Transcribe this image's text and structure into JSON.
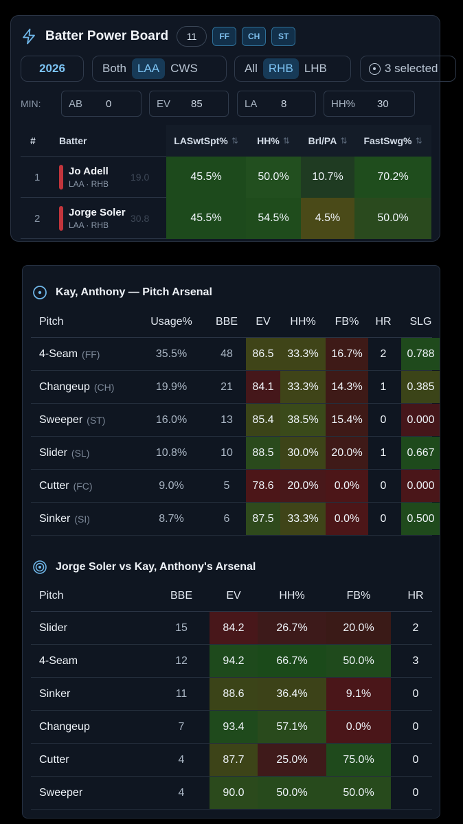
{
  "board": {
    "title": "Batter Power Board",
    "count": "11",
    "pitch_chips": [
      "FF",
      "CH",
      "ST"
    ],
    "icon": "lightning-bolt-icon"
  },
  "filters": {
    "year": "2026",
    "teams": [
      "Both",
      "LAA",
      "CWS"
    ],
    "team_active": "LAA",
    "hands": [
      "All",
      "RHB",
      "LHB"
    ],
    "hand_active": "RHB",
    "selection": "3 selected"
  },
  "minimums": {
    "label": "MIN:",
    "fields": [
      {
        "label": "AB",
        "value": "0"
      },
      {
        "label": "EV",
        "value": "85"
      },
      {
        "label": "LA",
        "value": "8"
      },
      {
        "label": "HH%",
        "value": "30"
      }
    ]
  },
  "batter_table": {
    "headers": [
      "#",
      "Batter",
      "LASwtSpt%",
      "HH%",
      "Brl/PA",
      "FastSwg%"
    ],
    "sort_icon": "⇅",
    "rows": [
      {
        "rank": "1",
        "name": "Jo Adell",
        "meta": "LAA · RHB",
        "ghost": "19.0",
        "cells": [
          "45.5%",
          "50.0%",
          "10.7%",
          "70.2%"
        ]
      },
      {
        "rank": "2",
        "name": "Jorge Soler",
        "meta": "LAA · RHB",
        "ghost": "30.8",
        "cells": [
          "45.5%",
          "54.5%",
          "4.5%",
          "50.0%"
        ]
      }
    ],
    "colors": [
      [
        "#1d4a1c",
        "#224f1f",
        "#1f3b22",
        "#1f4d1d"
      ],
      [
        "#1d4a1c",
        "#1f4c1c",
        "#4a4a18",
        "#2a4a1e"
      ]
    ]
  },
  "arsenal": {
    "title": "Kay, Anthony — Pitch Arsenal",
    "icon": "target-icon",
    "headers": [
      "Pitch",
      "Usage%",
      "BBE",
      "EV",
      "HH%",
      "FB%",
      "HR",
      "SLG"
    ],
    "rows": [
      {
        "pitch": "4-Seam",
        "abbr": "(FF)",
        "usage": "35.5%",
        "bbe": "48",
        "ev": "86.5",
        "hh": "33.3%",
        "fb": "16.7%",
        "hr": "2",
        "slg": "0.788"
      },
      {
        "pitch": "Changeup",
        "abbr": "(CH)",
        "usage": "19.9%",
        "bbe": "21",
        "ev": "84.1",
        "hh": "33.3%",
        "fb": "14.3%",
        "hr": "1",
        "slg": "0.385"
      },
      {
        "pitch": "Sweeper",
        "abbr": "(ST)",
        "usage": "16.0%",
        "bbe": "13",
        "ev": "85.4",
        "hh": "38.5%",
        "fb": "15.4%",
        "hr": "0",
        "slg": "0.000"
      },
      {
        "pitch": "Slider",
        "abbr": "(SL)",
        "usage": "10.8%",
        "bbe": "10",
        "ev": "88.5",
        "hh": "30.0%",
        "fb": "20.0%",
        "hr": "1",
        "slg": "0.667"
      },
      {
        "pitch": "Cutter",
        "abbr": "(FC)",
        "usage": "9.0%",
        "bbe": "5",
        "ev": "78.6",
        "hh": "20.0%",
        "fb": "0.0%",
        "hr": "0",
        "slg": "0.000"
      },
      {
        "pitch": "Sinker",
        "abbr": "(SI)",
        "usage": "8.7%",
        "bbe": "6",
        "ev": "87.5",
        "hh": "33.3%",
        "fb": "0.0%",
        "hr": "0",
        "slg": "0.500"
      }
    ],
    "colors": [
      {
        "ev": "#3f4418",
        "hh": "#3f4418",
        "fb": "#3e1a17",
        "slg": "#1f4a1c"
      },
      {
        "ev": "#45171a",
        "hh": "#3f4418",
        "fb": "#3e1a17",
        "slg": "#3b4418"
      },
      {
        "ev": "#3b4418",
        "hh": "#3a4a1a",
        "fb": "#3e1a17",
        "slg": "#45161a"
      },
      {
        "ev": "#2a4a1c",
        "hh": "#3d4418",
        "fb": "#3f1a18",
        "slg": "#1e4a1c"
      },
      {
        "ev": "#4c1618",
        "hh": "#48181a",
        "fb": "#4c1618",
        "slg": "#4a1619"
      },
      {
        "ev": "#2f4a1c",
        "hh": "#3f4418",
        "fb": "#4c1618",
        "slg": "#1f4a1c"
      }
    ]
  },
  "matchup": {
    "title": "Jorge Soler vs Kay, Anthony's Arsenal",
    "icon": "bullseye-icon",
    "headers": [
      "Pitch",
      "BBE",
      "EV",
      "HH%",
      "FB%",
      "HR"
    ],
    "rows": [
      {
        "pitch": "Slider",
        "bbe": "15",
        "ev": "84.2",
        "hh": "26.7%",
        "fb": "20.0%",
        "hr": "2"
      },
      {
        "pitch": "4-Seam",
        "bbe": "12",
        "ev": "94.2",
        "hh": "66.7%",
        "fb": "50.0%",
        "hr": "3"
      },
      {
        "pitch": "Sinker",
        "bbe": "11",
        "ev": "88.6",
        "hh": "36.4%",
        "fb": "9.1%",
        "hr": "0"
      },
      {
        "pitch": "Changeup",
        "bbe": "7",
        "ev": "93.4",
        "hh": "57.1%",
        "fb": "0.0%",
        "hr": "0"
      },
      {
        "pitch": "Cutter",
        "bbe": "4",
        "ev": "87.7",
        "hh": "25.0%",
        "fb": "75.0%",
        "hr": "0"
      },
      {
        "pitch": "Sweeper",
        "bbe": "4",
        "ev": "90.0",
        "hh": "50.0%",
        "fb": "50.0%",
        "hr": "0"
      }
    ],
    "colors": [
      {
        "ev": "#48171a",
        "hh": "#3d1a1a",
        "fb": "#3a1a17"
      },
      {
        "ev": "#1e4a1c",
        "hh": "#1b4a1a",
        "fb": "#1f4a1c"
      },
      {
        "ev": "#3b4418",
        "hh": "#3c4218",
        "fb": "#4a1619"
      },
      {
        "ev": "#1f4a1c",
        "hh": "#294a1c",
        "fb": "#4a1619"
      },
      {
        "ev": "#3d4418",
        "hh": "#3f1a1a",
        "fb": "#1f4a1c"
      },
      {
        "ev": "#2b4a1c",
        "hh": "#274a1c",
        "fb": "#274a1c"
      }
    ]
  }
}
